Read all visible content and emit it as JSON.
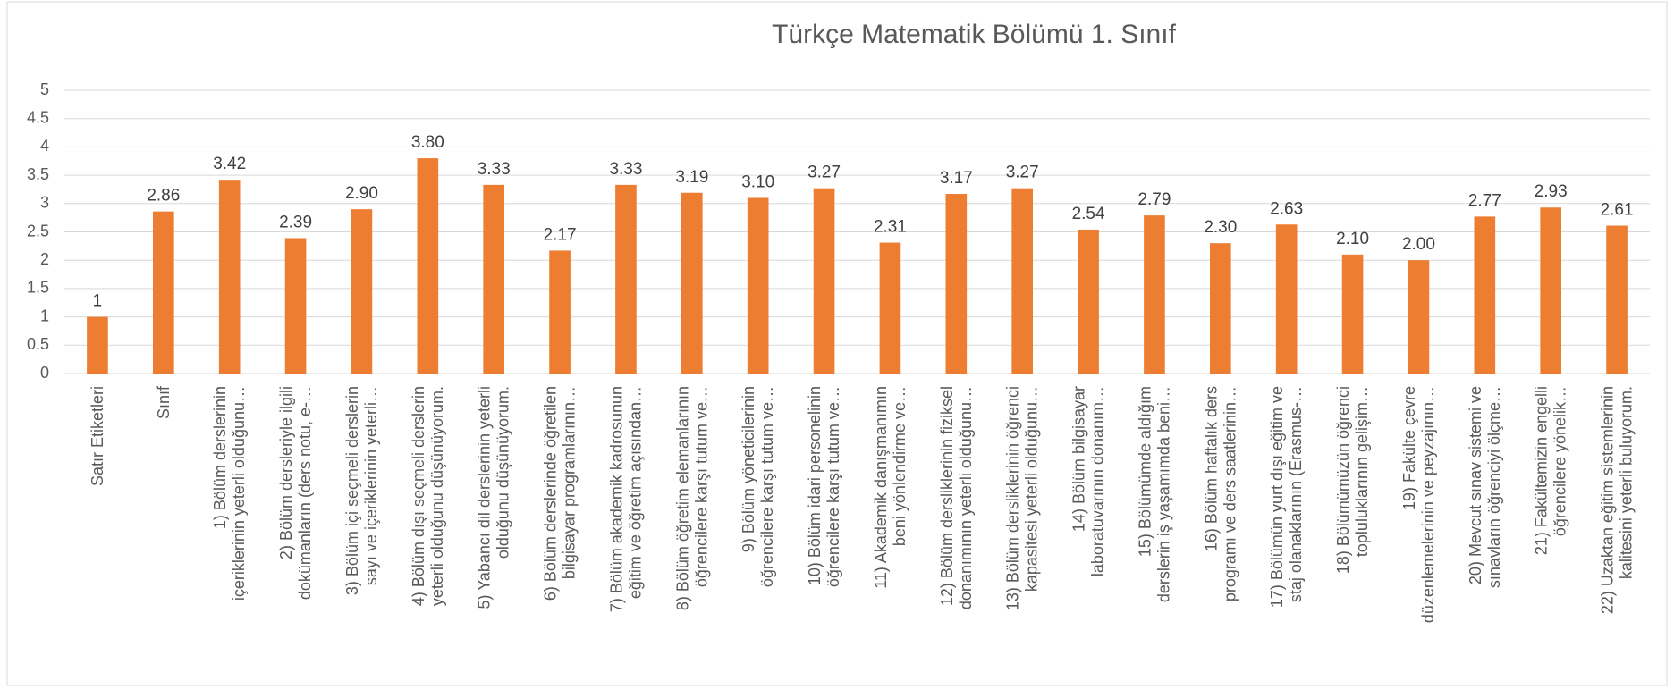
{
  "chart_data": {
    "type": "bar",
    "title": "Türkçe Matematik Bölümü 1. Sınıf",
    "categories": [
      "Satır Etiketleri",
      "Sınıf",
      "1) Bölüm derslerinin\niçeriklerinin yeterli olduğunu…",
      "2) Bölüm dersleriyle ilgili\ndokümanların (ders notu, e-…",
      "3) Bölüm içi seçmeli derslerin\nsayı ve içeriklerinin yeterli…",
      "4) Bölüm dışı seçmeli derslerin\nyeterli olduğunu düşünüyorum.",
      "5) Yabancı dil derslerinin yeterli\nolduğunu düşünüyorum.",
      "6) Bölüm derslerinde öğretilen\nbilgisayar programlarının…",
      "7) Bölüm akademik kadrosunun\neğitim ve öğretim açısından…",
      "8) Bölüm öğretim elemanlarının\nöğrencilere karşı tutum ve…",
      "9) Bölüm yöneticilerinin\nöğrencilere karşı tutum ve…",
      "10) Bölüm idari personelinin\nöğrencilere karşı tutum ve…",
      "11) Akademik danışmanımın\nbeni yönlendirme ve…",
      "12) Bölüm dersliklerinin fiziksel\ndonanımının yeterli olduğunu…",
      "13) Bölüm dersliklerinin öğrenci\nkapasitesi yeterli olduğunu…",
      "14) Bölüm bilgisayar\nlaboratuvarının donanım…",
      "15) Bölümümde aldığım\nderslerin iş yaşamımda beni…",
      "16) Bölüm haftalık ders\nprogramı ve ders saatlerinin…",
      "17) Bölümün yurt dışı eğitim ve\nstaj olanaklarının (Erasmus-…",
      "18) Bölümümüzün öğrenci\ntopluluklarının gelişim…",
      "19) Fakülte çevre\ndüzenlemelerinin ve peyzajının…",
      "20) Mevcut sınav sistemi ve\nsınavların öğrenciyi ölçme…",
      "21) Fakültemizin engelli\nöğrencilere yönelik…",
      "22) Uzaktan eğitim sistemlerinin\nkalitesini yeterli buluyorum."
    ],
    "values": [
      1,
      2.86,
      3.42,
      2.39,
      2.9,
      3.8,
      3.33,
      2.17,
      3.33,
      3.19,
      3.1,
      3.27,
      2.31,
      3.17,
      3.27,
      2.54,
      2.79,
      2.3,
      2.63,
      2.1,
      2,
      2.77,
      2.93,
      2.61
    ],
    "value_labels": [
      "1",
      "2.86",
      "3.42",
      "2.39",
      "2.90",
      "3.80",
      "3.33",
      "2.17",
      "3.33",
      "3.19",
      "3.10",
      "3.27",
      "2.31",
      "3.17",
      "3.27",
      "2.54",
      "2.79",
      "2.30",
      "2.63",
      "2.10",
      "2.00",
      "2.77",
      "2.93",
      "2.61"
    ],
    "color": "#ed7d31",
    "ylim": [
      0,
      5
    ],
    "yticks": [
      0,
      0.5,
      1,
      1.5,
      2,
      2.5,
      3,
      3.5,
      4,
      4.5,
      5
    ],
    "grid": true
  }
}
